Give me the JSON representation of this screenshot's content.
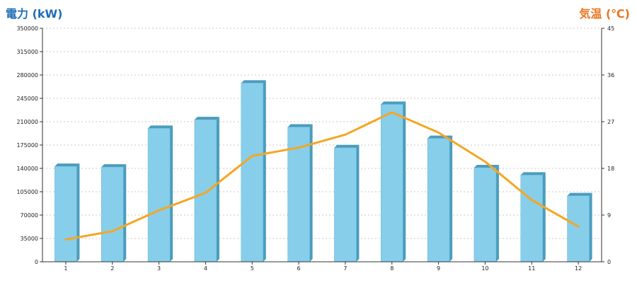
{
  "chart_data": {
    "type": "bar",
    "categories": [
      "1",
      "2",
      "3",
      "4",
      "5",
      "6",
      "7",
      "8",
      "9",
      "10",
      "11",
      "12"
    ],
    "series": [
      {
        "values": [
          143000,
          142000,
          200000,
          213000,
          268000,
          202000,
          171000,
          236000,
          185000,
          141000,
          130000,
          99000
        ],
        "axis": "left",
        "type": "bar",
        "color": "#87ceeb"
      },
      {
        "values": [
          4.3,
          5.9,
          9.9,
          13.3,
          20.4,
          22.0,
          24.5,
          28.8,
          24.9,
          19.3,
          11.9,
          6.8
        ],
        "axis": "right",
        "type": "line",
        "color": "#f5a623"
      }
    ],
    "ylabel": "電力 (kW)",
    "ylabel_right": "気温 (℃)",
    "ylim": [
      0,
      350000
    ],
    "ylim_right": [
      0,
      45
    ],
    "yticks": [
      "0",
      "35000",
      "70000",
      "105000",
      "140000",
      "175000",
      "210000",
      "245000",
      "280000",
      "315000",
      "350000"
    ],
    "yticks_right": [
      "0",
      "9",
      "18",
      "27",
      "36",
      "45"
    ],
    "grid": true
  }
}
